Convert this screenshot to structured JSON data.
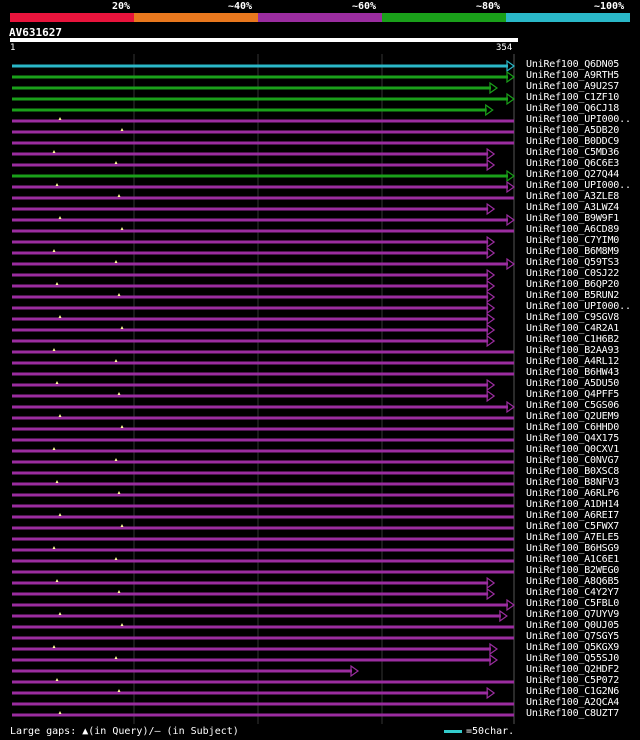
{
  "legend": {
    "labels": [
      "20%",
      "~40%",
      "~60%",
      "~80%",
      "~100%"
    ],
    "colors": [
      "#e8143c",
      "#e8781e",
      "#9b2da0",
      "#1aa01a",
      "#2ab8c8"
    ]
  },
  "query": {
    "name": "AV631627",
    "start": "1",
    "end": "354",
    "length": 354
  },
  "hits": [
    {
      "name": "UniRef100_Q6DN05",
      "color": "#2ab8c8",
      "end": 354,
      "arrow": true
    },
    {
      "name": "UniRef100_A9RTH5",
      "color": "#1aa01a",
      "end": 354,
      "arrow": true
    },
    {
      "name": "UniRef100_A9U2S7",
      "color": "#1aa01a",
      "end": 342,
      "arrow": true
    },
    {
      "name": "UniRef100_C1ZF10",
      "color": "#1aa01a",
      "end": 354,
      "arrow": true
    },
    {
      "name": "UniRef100_Q6CJ18",
      "color": "#1aa01a",
      "end": 339,
      "arrow": true
    },
    {
      "name": "UniRef100_UPI000..",
      "color": "#9b2da0",
      "end": 354,
      "arrow": false
    },
    {
      "name": "UniRef100_A5DB20",
      "color": "#9b2da0",
      "end": 354,
      "arrow": false
    },
    {
      "name": "UniRef100_B0DDC9",
      "color": "#9b2da0",
      "end": 354,
      "arrow": false
    },
    {
      "name": "UniRef100_C5MD36",
      "color": "#9b2da0",
      "end": 340,
      "arrow": true
    },
    {
      "name": "UniRef100_Q6C6E3",
      "color": "#9b2da0",
      "end": 340,
      "arrow": true
    },
    {
      "name": "UniRef100_Q27Q44",
      "color": "#1aa01a",
      "end": 354,
      "arrow": true
    },
    {
      "name": "UniRef100_UPI000..",
      "color": "#9b2da0",
      "end": 354,
      "arrow": true
    },
    {
      "name": "UniRef100_A3ZLE8",
      "color": "#9b2da0",
      "end": 354,
      "arrow": false
    },
    {
      "name": "UniRef100_A3LWZ4",
      "color": "#9b2da0",
      "end": 340,
      "arrow": true
    },
    {
      "name": "UniRef100_B9W9F1",
      "color": "#9b2da0",
      "end": 354,
      "arrow": true
    },
    {
      "name": "UniRef100_A6CD89",
      "color": "#9b2da0",
      "end": 354,
      "arrow": false
    },
    {
      "name": "UniRef100_C7YIM0",
      "color": "#9b2da0",
      "end": 340,
      "arrow": true
    },
    {
      "name": "UniRef100_B6M8M9",
      "color": "#9b2da0",
      "end": 340,
      "arrow": true
    },
    {
      "name": "UniRef100_Q59TS3",
      "color": "#9b2da0",
      "end": 354,
      "arrow": true
    },
    {
      "name": "UniRef100_C0SJ22",
      "color": "#9b2da0",
      "end": 340,
      "arrow": true
    },
    {
      "name": "UniRef100_B6QP20",
      "color": "#9b2da0",
      "end": 340,
      "arrow": true
    },
    {
      "name": "UniRef100_B5RUN2",
      "color": "#9b2da0",
      "end": 340,
      "arrow": true
    },
    {
      "name": "UniRef100_UPI000..",
      "color": "#9b2da0",
      "end": 340,
      "arrow": true
    },
    {
      "name": "UniRef100_C9SGV8",
      "color": "#9b2da0",
      "end": 340,
      "arrow": true
    },
    {
      "name": "UniRef100_C4R2A1",
      "color": "#9b2da0",
      "end": 340,
      "arrow": true
    },
    {
      "name": "UniRef100_C1H6B2",
      "color": "#9b2da0",
      "end": 340,
      "arrow": true
    },
    {
      "name": "UniRef100_B2AA93",
      "color": "#9b2da0",
      "end": 354,
      "arrow": false
    },
    {
      "name": "UniRef100_A4RL12",
      "color": "#9b2da0",
      "end": 354,
      "arrow": false
    },
    {
      "name": "UniRef100_B6HW43",
      "color": "#9b2da0",
      "end": 354,
      "arrow": false
    },
    {
      "name": "UniRef100_A5DU50",
      "color": "#9b2da0",
      "end": 340,
      "arrow": true
    },
    {
      "name": "UniRef100_Q4PFF5",
      "color": "#9b2da0",
      "end": 340,
      "arrow": true
    },
    {
      "name": "UniRef100_C5GS06",
      "color": "#9b2da0",
      "end": 354,
      "arrow": true
    },
    {
      "name": "UniRef100_Q2UEM9",
      "color": "#9b2da0",
      "end": 354,
      "arrow": false
    },
    {
      "name": "UniRef100_C6HHD0",
      "color": "#9b2da0",
      "end": 354,
      "arrow": false
    },
    {
      "name": "UniRef100_Q4X175",
      "color": "#9b2da0",
      "end": 354,
      "arrow": false
    },
    {
      "name": "UniRef100_Q0CXV1",
      "color": "#9b2da0",
      "end": 354,
      "arrow": false
    },
    {
      "name": "UniRef100_C0NVG7",
      "color": "#9b2da0",
      "end": 354,
      "arrow": false
    },
    {
      "name": "UniRef100_B0XSC8",
      "color": "#9b2da0",
      "end": 354,
      "arrow": false
    },
    {
      "name": "UniRef100_B8NFV3",
      "color": "#9b2da0",
      "end": 354,
      "arrow": false
    },
    {
      "name": "UniRef100_A6RLP6",
      "color": "#9b2da0",
      "end": 354,
      "arrow": false
    },
    {
      "name": "UniRef100_A1DH14",
      "color": "#9b2da0",
      "end": 354,
      "arrow": false
    },
    {
      "name": "UniRef100_A6REI7",
      "color": "#9b2da0",
      "end": 354,
      "arrow": false
    },
    {
      "name": "UniRef100_C5FWX7",
      "color": "#9b2da0",
      "end": 354,
      "arrow": false
    },
    {
      "name": "UniRef100_A7ELE5",
      "color": "#9b2da0",
      "end": 354,
      "arrow": false
    },
    {
      "name": "UniRef100_B6HSG9",
      "color": "#9b2da0",
      "end": 354,
      "arrow": false
    },
    {
      "name": "UniRef100_A1C6E1",
      "color": "#9b2da0",
      "end": 354,
      "arrow": false
    },
    {
      "name": "UniRef100_B2WEG0",
      "color": "#9b2da0",
      "end": 354,
      "arrow": false
    },
    {
      "name": "UniRef100_A8Q6B5",
      "color": "#9b2da0",
      "end": 340,
      "arrow": true
    },
    {
      "name": "UniRef100_C4Y2Y7",
      "color": "#9b2da0",
      "end": 340,
      "arrow": true
    },
    {
      "name": "UniRef100_C5FBL0",
      "color": "#9b2da0",
      "end": 354,
      "arrow": true
    },
    {
      "name": "UniRef100_Q7UYV9",
      "color": "#9b2da0",
      "end": 349,
      "arrow": true
    },
    {
      "name": "UniRef100_Q0UJ05",
      "color": "#9b2da0",
      "end": 354,
      "arrow": false
    },
    {
      "name": "UniRef100_Q7SGY5",
      "color": "#9b2da0",
      "end": 354,
      "arrow": false
    },
    {
      "name": "UniRef100_Q5KGX9",
      "color": "#9b2da0",
      "end": 342,
      "arrow": true
    },
    {
      "name": "UniRef100_Q55SJ0",
      "color": "#9b2da0",
      "end": 342,
      "arrow": true
    },
    {
      "name": "UniRef100_Q2HDF2",
      "color": "#9b2da0",
      "end": 244,
      "arrow": true
    },
    {
      "name": "UniRef100_C5P072",
      "color": "#9b2da0",
      "end": 354,
      "arrow": false
    },
    {
      "name": "UniRef100_C1G2N6",
      "color": "#9b2da0",
      "end": 340,
      "arrow": true
    },
    {
      "name": "UniRef100_A2QCA4",
      "color": "#9b2da0",
      "end": 354,
      "arrow": false
    },
    {
      "name": "UniRef100_C8UZT7",
      "color": "#9b2da0",
      "end": 354,
      "arrow": false
    }
  ],
  "footer": {
    "gaps_text": "Large gaps: ▲(in Query)/– (in Subject)",
    "scale_text": "=50char."
  }
}
